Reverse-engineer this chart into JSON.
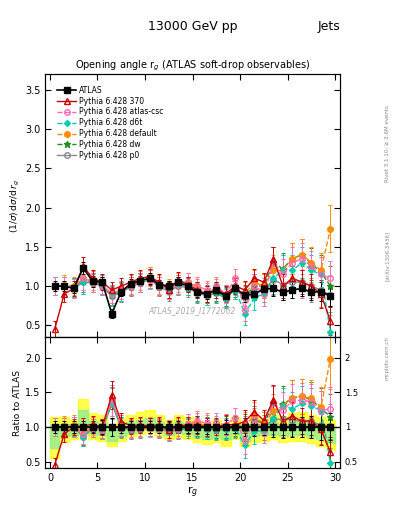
{
  "title_top": "13000 GeV pp",
  "title_right": "Jets",
  "plot_title": "Opening angle r$_g$ (ATLAS soft-drop observables)",
  "ylabel_main": "(1/σ) dσ/d r_g",
  "ylabel_ratio": "Ratio to ATLAS",
  "xlabel": "r$_g$",
  "watermark": "ATLAS_2019_I1772062",
  "rivet_text": "Rivet 3.1.10; ≥ 2.6M events",
  "arxiv_text": "[arXiv:1306.3436]",
  "mcplots_text": "mcplots.cern.ch",
  "ylim_main": [
    0.35,
    3.7
  ],
  "ylim_ratio": [
    0.4,
    2.3
  ],
  "xlim": [
    -0.5,
    30.5
  ],
  "x_ticks": [
    0,
    5,
    10,
    15,
    20,
    25,
    30
  ],
  "series": {
    "ATLAS": {
      "color": "#000000",
      "marker": "s",
      "markersize": 4,
      "linestyle": "-",
      "linewidth": 1.2,
      "label": "ATLAS",
      "filled": true,
      "x": [
        0.5,
        1.5,
        2.5,
        3.5,
        4.5,
        5.5,
        6.5,
        7.5,
        8.5,
        9.5,
        10.5,
        11.5,
        12.5,
        13.5,
        14.5,
        15.5,
        16.5,
        17.5,
        18.5,
        19.5,
        20.5,
        21.5,
        22.5,
        23.5,
        24.5,
        25.5,
        26.5,
        27.5,
        28.5,
        29.5
      ],
      "y": [
        1.0,
        1.0,
        0.97,
        1.23,
        1.06,
        1.05,
        0.65,
        0.93,
        1.03,
        1.07,
        1.1,
        1.02,
        1.0,
        1.05,
        1.0,
        0.92,
        0.9,
        0.95,
        0.87,
        0.97,
        0.88,
        0.9,
        0.96,
        0.97,
        0.92,
        0.95,
        0.97,
        0.92,
        0.93,
        0.87
      ],
      "yerr": [
        0.06,
        0.06,
        0.06,
        0.08,
        0.07,
        0.07,
        0.06,
        0.06,
        0.06,
        0.06,
        0.07,
        0.06,
        0.06,
        0.06,
        0.06,
        0.06,
        0.06,
        0.06,
        0.06,
        0.06,
        0.08,
        0.08,
        0.08,
        0.1,
        0.1,
        0.1,
        0.1,
        0.1,
        0.12,
        0.12
      ]
    },
    "Pythia 6.428 370": {
      "color": "#cc0000",
      "marker": "^",
      "markersize": 4,
      "linestyle": "-",
      "linewidth": 1.0,
      "label": "Pythia 6.428 370",
      "filled": false,
      "x": [
        0.5,
        1.5,
        2.5,
        3.5,
        4.5,
        5.5,
        6.5,
        7.5,
        8.5,
        9.5,
        10.5,
        11.5,
        12.5,
        13.5,
        14.5,
        15.5,
        16.5,
        17.5,
        18.5,
        19.5,
        20.5,
        21.5,
        22.5,
        23.5,
        24.5,
        25.5,
        26.5,
        27.5,
        28.5,
        29.5
      ],
      "y": [
        0.45,
        0.9,
        0.97,
        1.25,
        1.1,
        1.05,
        0.95,
        1.0,
        1.05,
        1.1,
        1.12,
        1.05,
        0.95,
        1.08,
        1.02,
        0.95,
        0.9,
        0.95,
        0.9,
        1.0,
        0.95,
        1.1,
        1.05,
        1.35,
        1.0,
        1.1,
        1.05,
        1.0,
        0.9,
        0.55
      ],
      "yerr": [
        0.1,
        0.1,
        0.1,
        0.12,
        0.1,
        0.1,
        0.1,
        0.1,
        0.1,
        0.1,
        0.1,
        0.1,
        0.1,
        0.1,
        0.1,
        0.1,
        0.1,
        0.1,
        0.1,
        0.1,
        0.12,
        0.12,
        0.12,
        0.15,
        0.15,
        0.15,
        0.15,
        0.15,
        0.18,
        0.18
      ]
    },
    "Pythia 6.428 atlas-csc": {
      "color": "#ff69b4",
      "marker": "o",
      "markersize": 4,
      "linestyle": "--",
      "linewidth": 1.0,
      "label": "Pythia 6.428 atlas-csc",
      "filled": false,
      "x": [
        0.5,
        1.5,
        2.5,
        3.5,
        4.5,
        5.5,
        6.5,
        7.5,
        8.5,
        9.5,
        10.5,
        11.5,
        12.5,
        13.5,
        14.5,
        15.5,
        16.5,
        17.5,
        18.5,
        19.5,
        20.5,
        21.5,
        22.5,
        23.5,
        24.5,
        25.5,
        26.5,
        27.5,
        28.5,
        29.5
      ],
      "y": [
        1.0,
        1.0,
        0.97,
        1.1,
        1.05,
        1.0,
        0.9,
        0.95,
        1.0,
        1.05,
        1.08,
        1.0,
        0.95,
        1.02,
        1.05,
        1.0,
        0.95,
        1.0,
        0.9,
        1.1,
        0.7,
        1.0,
        0.9,
        1.3,
        1.15,
        1.3,
        1.35,
        1.25,
        1.15,
        1.1
      ],
      "yerr": [
        0.12,
        0.12,
        0.12,
        0.15,
        0.12,
        0.12,
        0.12,
        0.12,
        0.12,
        0.12,
        0.12,
        0.12,
        0.12,
        0.12,
        0.12,
        0.12,
        0.12,
        0.12,
        0.12,
        0.12,
        0.15,
        0.15,
        0.15,
        0.2,
        0.2,
        0.2,
        0.2,
        0.2,
        0.22,
        0.22
      ]
    },
    "Pythia 6.428 d6t": {
      "color": "#00ccaa",
      "marker": "D",
      "markersize": 3,
      "linestyle": "--",
      "linewidth": 1.0,
      "label": "Pythia 6.428 d6t",
      "filled": true,
      "x": [
        0.5,
        1.5,
        2.5,
        3.5,
        4.5,
        5.5,
        6.5,
        7.5,
        8.5,
        9.5,
        10.5,
        11.5,
        12.5,
        13.5,
        14.5,
        15.5,
        16.5,
        17.5,
        18.5,
        19.5,
        20.5,
        21.5,
        22.5,
        23.5,
        24.5,
        25.5,
        26.5,
        27.5,
        28.5,
        29.5
      ],
      "y": [
        1.0,
        1.0,
        0.98,
        1.05,
        1.05,
        1.02,
        0.88,
        0.93,
        1.0,
        1.05,
        1.1,
        1.0,
        0.95,
        1.02,
        1.0,
        0.92,
        0.88,
        0.92,
        0.85,
        0.95,
        0.65,
        0.85,
        0.9,
        1.1,
        1.2,
        1.2,
        1.3,
        1.2,
        1.15,
        0.42
      ],
      "yerr": [
        0.12,
        0.12,
        0.12,
        0.15,
        0.12,
        0.12,
        0.12,
        0.12,
        0.12,
        0.12,
        0.12,
        0.12,
        0.12,
        0.12,
        0.12,
        0.12,
        0.12,
        0.12,
        0.12,
        0.12,
        0.15,
        0.15,
        0.15,
        0.2,
        0.2,
        0.2,
        0.2,
        0.2,
        0.22,
        0.25
      ]
    },
    "Pythia 6.428 default": {
      "color": "#ff8c00",
      "marker": "o",
      "markersize": 4,
      "linestyle": "--",
      "linewidth": 1.0,
      "label": "Pythia 6.428 default",
      "filled": true,
      "x": [
        0.5,
        1.5,
        2.5,
        3.5,
        4.5,
        5.5,
        6.5,
        7.5,
        8.5,
        9.5,
        10.5,
        11.5,
        12.5,
        13.5,
        14.5,
        15.5,
        16.5,
        17.5,
        18.5,
        19.5,
        20.5,
        21.5,
        22.5,
        23.5,
        24.5,
        25.5,
        26.5,
        27.5,
        28.5,
        29.5
      ],
      "y": [
        1.0,
        1.02,
        1.0,
        1.1,
        1.07,
        1.02,
        0.9,
        0.95,
        1.02,
        1.07,
        1.12,
        1.02,
        0.97,
        1.05,
        1.05,
        0.97,
        0.92,
        0.97,
        0.9,
        1.0,
        0.9,
        1.05,
        1.0,
        1.2,
        1.2,
        1.35,
        1.4,
        1.3,
        1.2,
        1.73
      ],
      "yerr": [
        0.12,
        0.12,
        0.12,
        0.15,
        0.12,
        0.12,
        0.12,
        0.12,
        0.12,
        0.12,
        0.12,
        0.12,
        0.12,
        0.12,
        0.12,
        0.12,
        0.12,
        0.12,
        0.12,
        0.12,
        0.15,
        0.15,
        0.15,
        0.2,
        0.2,
        0.2,
        0.2,
        0.2,
        0.22,
        0.3
      ]
    },
    "Pythia 6.428 dw": {
      "color": "#228B22",
      "marker": "*",
      "markersize": 5,
      "linestyle": "--",
      "linewidth": 1.0,
      "label": "Pythia 6.428 dw",
      "filled": true,
      "x": [
        0.5,
        1.5,
        2.5,
        3.5,
        4.5,
        5.5,
        6.5,
        7.5,
        8.5,
        9.5,
        10.5,
        11.5,
        12.5,
        13.5,
        14.5,
        15.5,
        16.5,
        17.5,
        18.5,
        19.5,
        20.5,
        21.5,
        22.5,
        23.5,
        24.5,
        25.5,
        26.5,
        27.5,
        28.5,
        29.5
      ],
      "y": [
        1.0,
        1.0,
        0.98,
        1.08,
        1.05,
        1.0,
        0.88,
        0.93,
        1.0,
        1.05,
        1.1,
        1.0,
        0.95,
        1.02,
        1.0,
        0.93,
        0.9,
        0.93,
        0.87,
        0.98,
        0.87,
        1.0,
        1.0,
        1.3,
        1.22,
        1.35,
        1.4,
        1.28,
        1.18,
        1.0
      ],
      "yerr": [
        0.12,
        0.12,
        0.12,
        0.15,
        0.12,
        0.12,
        0.12,
        0.12,
        0.12,
        0.12,
        0.12,
        0.12,
        0.12,
        0.12,
        0.12,
        0.12,
        0.12,
        0.12,
        0.12,
        0.12,
        0.15,
        0.15,
        0.15,
        0.2,
        0.2,
        0.2,
        0.2,
        0.2,
        0.22,
        0.25
      ]
    },
    "Pythia 6.428 p0": {
      "color": "#888888",
      "marker": "o",
      "markersize": 4,
      "linestyle": "-",
      "linewidth": 1.0,
      "label": "Pythia 6.428 p0",
      "filled": false,
      "x": [
        0.5,
        1.5,
        2.5,
        3.5,
        4.5,
        5.5,
        6.5,
        7.5,
        8.5,
        9.5,
        10.5,
        11.5,
        12.5,
        13.5,
        14.5,
        15.5,
        16.5,
        17.5,
        18.5,
        19.5,
        20.5,
        21.5,
        22.5,
        23.5,
        24.5,
        25.5,
        26.5,
        27.5,
        28.5,
        29.5
      ],
      "y": [
        1.0,
        1.0,
        0.97,
        1.05,
        1.04,
        1.0,
        0.87,
        0.92,
        0.99,
        1.04,
        1.08,
        0.99,
        0.93,
        1.0,
        0.98,
        0.91,
        0.88,
        0.91,
        0.84,
        0.96,
        0.85,
        0.97,
        0.95,
        1.08,
        1.02,
        1.05,
        1.05,
        1.0,
        0.95,
        0.88
      ],
      "yerr": [
        0.12,
        0.12,
        0.12,
        0.15,
        0.12,
        0.12,
        0.12,
        0.12,
        0.12,
        0.12,
        0.12,
        0.12,
        0.12,
        0.12,
        0.12,
        0.12,
        0.12,
        0.12,
        0.12,
        0.12,
        0.15,
        0.15,
        0.15,
        0.2,
        0.2,
        0.2,
        0.2,
        0.2,
        0.22,
        0.25
      ]
    }
  },
  "band_yellow_x": [
    0,
    1,
    2,
    3,
    4,
    5,
    6,
    7,
    8,
    9,
    10,
    11,
    12,
    13,
    14,
    15,
    16,
    17,
    18,
    19,
    20,
    21,
    22,
    23,
    24,
    25,
    26,
    27,
    28,
    29,
    30
  ],
  "band_yellow_lo": [
    0.55,
    0.78,
    0.82,
    0.9,
    0.82,
    0.8,
    0.72,
    0.8,
    0.87,
    0.9,
    0.93,
    0.87,
    0.82,
    0.85,
    0.83,
    0.78,
    0.75,
    0.78,
    0.73,
    0.82,
    0.72,
    0.78,
    0.8,
    0.82,
    0.78,
    0.8,
    0.8,
    0.77,
    0.73,
    0.68,
    0.65
  ],
  "band_yellow_hi": [
    1.15,
    1.15,
    1.1,
    1.4,
    1.2,
    1.18,
    1.05,
    1.12,
    1.18,
    1.22,
    1.25,
    1.17,
    1.1,
    1.18,
    1.15,
    1.08,
    1.05,
    1.1,
    1.05,
    1.15,
    1.05,
    1.15,
    1.12,
    1.18,
    1.15,
    1.2,
    1.22,
    1.18,
    1.15,
    1.1,
    1.05
  ],
  "band_green_x": [
    0,
    1,
    2,
    3,
    4,
    5,
    6,
    7,
    8,
    9,
    10,
    11,
    12,
    13,
    14,
    15,
    16,
    17,
    18,
    19,
    20,
    21,
    22,
    23,
    24,
    25,
    26,
    27,
    28,
    29,
    30
  ],
  "band_green_lo": [
    0.7,
    0.87,
    0.88,
    1.0,
    0.9,
    0.88,
    0.8,
    0.87,
    0.92,
    0.97,
    1.0,
    0.93,
    0.88,
    0.92,
    0.9,
    0.85,
    0.83,
    0.85,
    0.82,
    0.9,
    0.8,
    0.87,
    0.88,
    0.9,
    0.87,
    0.88,
    0.88,
    0.85,
    0.82,
    0.78,
    0.75
  ],
  "band_green_hi": [
    1.05,
    1.05,
    1.02,
    1.25,
    1.08,
    1.06,
    0.95,
    1.02,
    1.07,
    1.1,
    1.13,
    1.07,
    1.0,
    1.07,
    1.05,
    0.98,
    0.96,
    0.98,
    0.95,
    1.05,
    0.94,
    1.03,
    1.02,
    1.07,
    1.04,
    1.08,
    1.1,
    1.06,
    1.04,
    1.0,
    0.96
  ]
}
